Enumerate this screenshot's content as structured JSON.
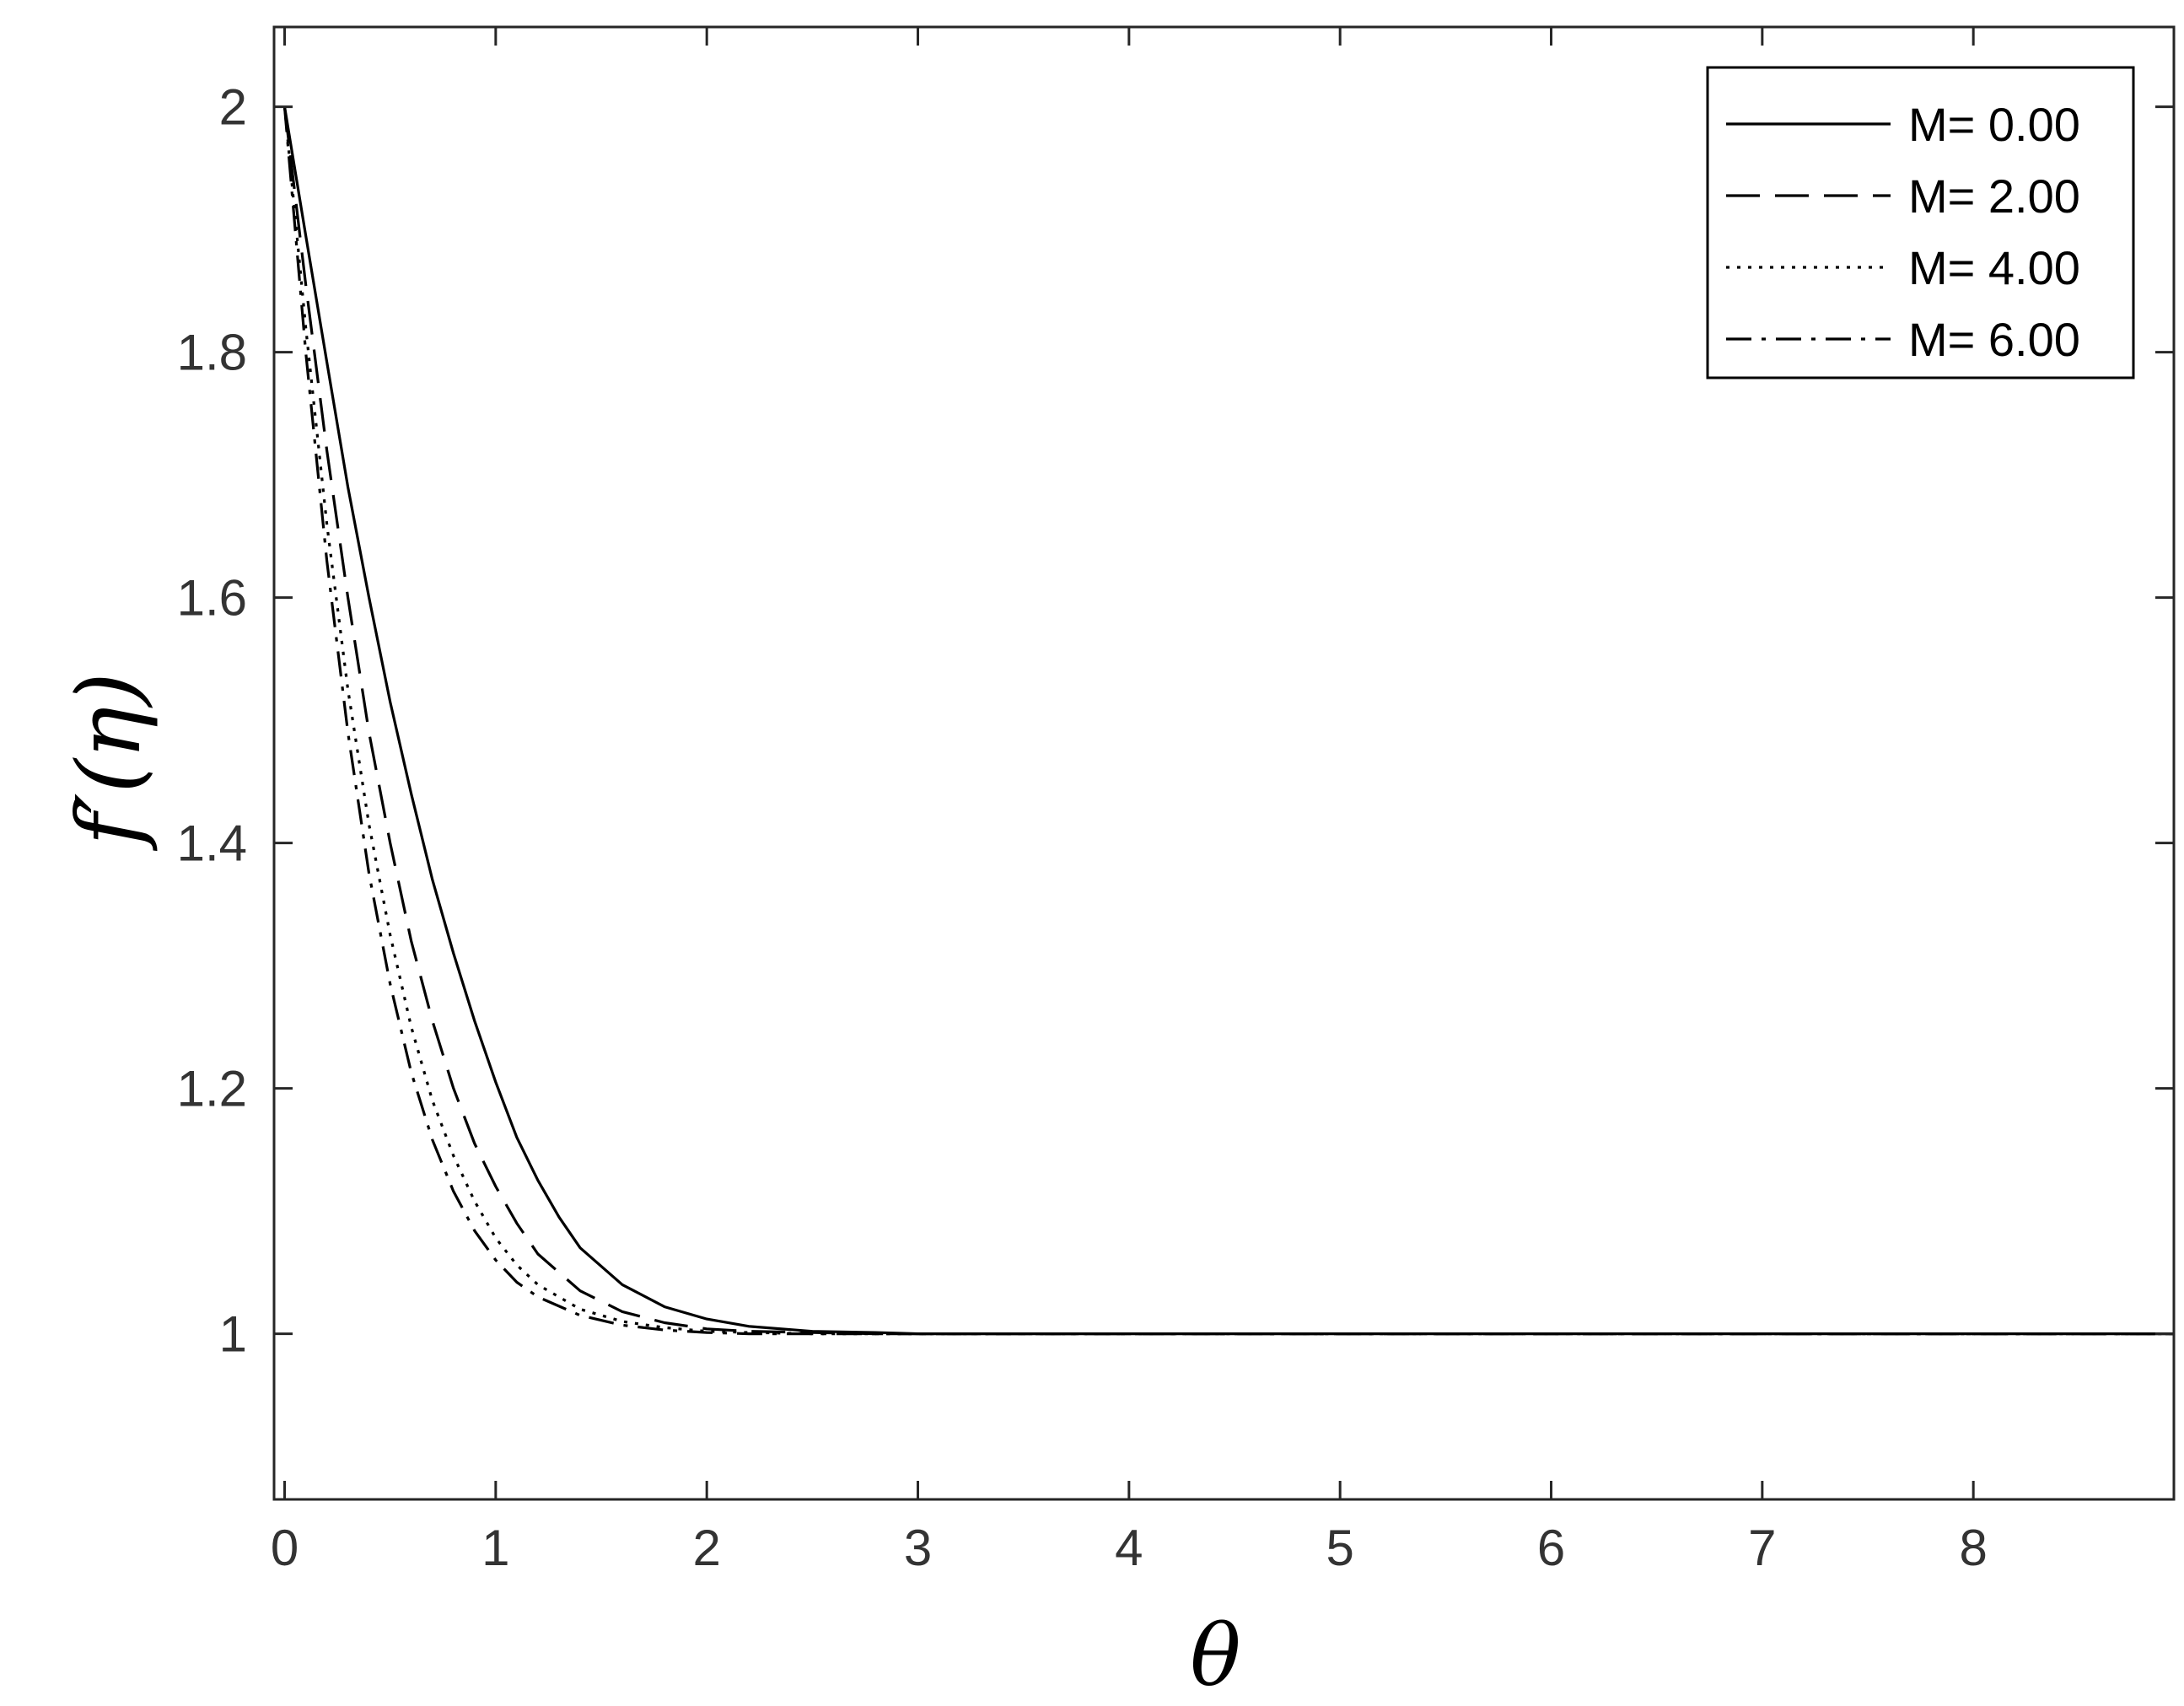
{
  "chart_data": {
    "type": "line",
    "title": "",
    "xlabel": "θ",
    "ylabel": "f′(η)",
    "xlim": [
      -0.05,
      8.95
    ],
    "ylim": [
      0.865,
      2.065
    ],
    "xticks": [
      0,
      1,
      2,
      3,
      4,
      5,
      6,
      7,
      8
    ],
    "yticks": [
      1,
      1.2,
      1.4,
      1.6,
      1.8,
      2
    ],
    "xtick_labels": [
      "0",
      "1",
      "2",
      "3",
      "4",
      "5",
      "6",
      "7",
      "8"
    ],
    "ytick_labels": [
      "1",
      "1.2",
      "1.4",
      "1.6",
      "1.8",
      "2"
    ],
    "grid": false,
    "legend_position": "top-right",
    "series": [
      {
        "name": "M= 0.00",
        "line_style": "solid",
        "color": "#000000",
        "x": [
          0,
          0.1,
          0.2,
          0.3,
          0.4,
          0.5,
          0.6,
          0.7,
          0.8,
          0.9,
          1.0,
          1.1,
          1.2,
          1.3,
          1.4,
          1.6,
          1.8,
          2.0,
          2.2,
          2.5,
          2.8,
          3.0,
          3.5,
          4,
          5,
          6,
          7,
          8,
          8.95
        ],
        "y": [
          2.0,
          1.895,
          1.792,
          1.69,
          1.6,
          1.515,
          1.44,
          1.37,
          1.31,
          1.255,
          1.205,
          1.16,
          1.125,
          1.095,
          1.07,
          1.04,
          1.022,
          1.012,
          1.006,
          1.002,
          1.001,
          1.0,
          1.0,
          1.0,
          1.0,
          1.0,
          1.0,
          1.0,
          1.0
        ]
      },
      {
        "name": "M= 2.00",
        "line_style": "dashed",
        "color": "#000000",
        "x": [
          0,
          0.1,
          0.2,
          0.3,
          0.4,
          0.5,
          0.6,
          0.7,
          0.8,
          0.9,
          1.0,
          1.1,
          1.2,
          1.4,
          1.6,
          1.8,
          2.0,
          2.2,
          2.5,
          2.8,
          3.0,
          3.5,
          4,
          5,
          6,
          7,
          8,
          8.95
        ],
        "y": [
          2.0,
          1.855,
          1.72,
          1.6,
          1.49,
          1.4,
          1.32,
          1.255,
          1.2,
          1.155,
          1.12,
          1.09,
          1.065,
          1.035,
          1.018,
          1.009,
          1.004,
          1.002,
          1.001,
          1.0,
          1.0,
          1.0,
          1.0,
          1.0,
          1.0,
          1.0,
          1.0,
          1.0
        ]
      },
      {
        "name": "M= 4.00",
        "line_style": "dotted",
        "color": "#000000",
        "x": [
          0,
          0.1,
          0.2,
          0.3,
          0.4,
          0.5,
          0.6,
          0.7,
          0.8,
          0.9,
          1.0,
          1.1,
          1.2,
          1.4,
          1.6,
          1.8,
          2.0,
          2.2,
          2.5,
          2.8,
          3.0,
          3.5,
          4,
          5,
          6,
          7,
          8,
          8.95
        ],
        "y": [
          2.0,
          1.82,
          1.66,
          1.525,
          1.415,
          1.325,
          1.25,
          1.19,
          1.145,
          1.108,
          1.078,
          1.056,
          1.04,
          1.02,
          1.01,
          1.005,
          1.002,
          1.001,
          1.0,
          1.0,
          1.0,
          1.0,
          1.0,
          1.0,
          1.0,
          1.0,
          1.0,
          1.0
        ]
      },
      {
        "name": "M= 6.00",
        "line_style": "dashdot",
        "color": "#000000",
        "x": [
          0,
          0.1,
          0.2,
          0.3,
          0.4,
          0.5,
          0.6,
          0.7,
          0.8,
          0.9,
          1.0,
          1.1,
          1.2,
          1.4,
          1.6,
          1.8,
          2.0,
          2.2,
          2.5,
          2.8,
          3.0,
          3.5,
          4,
          5,
          6,
          7,
          8,
          8.95
        ],
        "y": [
          2.0,
          1.8,
          1.63,
          1.49,
          1.375,
          1.285,
          1.213,
          1.158,
          1.116,
          1.084,
          1.06,
          1.042,
          1.03,
          1.015,
          1.007,
          1.003,
          1.001,
          1.0,
          1.0,
          1.0,
          1.0,
          1.0,
          1.0,
          1.0,
          1.0,
          1.0,
          1.0,
          1.0
        ]
      }
    ]
  }
}
